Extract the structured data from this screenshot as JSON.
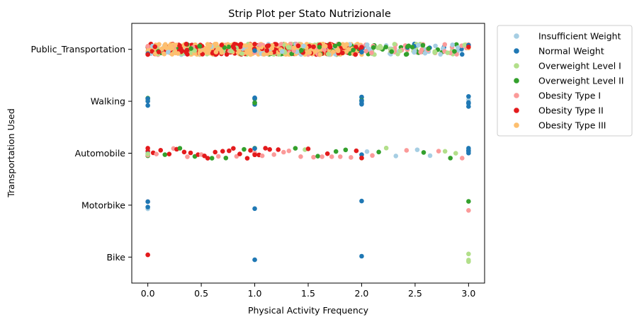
{
  "chart_data": {
    "type": "scatter",
    "subtype": "strip",
    "title": "Strip Plot per Stato Nutrizionale",
    "xlabel": "Physical Activity Frequency",
    "ylabel": "Transportation Used",
    "xlim": [
      -0.15,
      3.15
    ],
    "xticks": [
      "0.0",
      "0.5",
      "1.0",
      "1.5",
      "2.0",
      "2.5",
      "3.0"
    ],
    "categories": [
      "Public_Transportation",
      "Walking",
      "Automobile",
      "Motorbike",
      "Bike"
    ],
    "legend_position": "outside-right",
    "series": [
      {
        "name": "Insufficient Weight",
        "color": "#a6cee3"
      },
      {
        "name": "Normal Weight",
        "color": "#1f78b4"
      },
      {
        "name": "Overweight Level I",
        "color": "#b2df8a"
      },
      {
        "name": "Overweight Level II",
        "color": "#33a02c"
      },
      {
        "name": "Obesity Type I",
        "color": "#fb9a99"
      },
      {
        "name": "Obesity Type II",
        "color": "#e31a1c"
      },
      {
        "name": "Obesity Type III",
        "color": "#fdbf6f"
      }
    ],
    "points": [
      [
        "Motorbike",
        0.0,
        "Insufficient Weight"
      ],
      [
        "Motorbike",
        0.0,
        "Normal Weight"
      ],
      [
        "Motorbike",
        0.0,
        "Obesity Type I"
      ],
      [
        "Motorbike",
        0.0,
        "Normal Weight"
      ],
      [
        "Motorbike",
        1.0,
        "Normal Weight"
      ],
      [
        "Motorbike",
        2.0,
        "Normal Weight"
      ],
      [
        "Motorbike",
        3.0,
        "Overweight Level II"
      ],
      [
        "Motorbike",
        3.0,
        "Obesity Type I"
      ],
      [
        "Bike",
        0.0,
        "Obesity Type II"
      ],
      [
        "Bike",
        1.0,
        "Normal Weight"
      ],
      [
        "Bike",
        2.0,
        "Normal Weight"
      ],
      [
        "Bike",
        3.0,
        "Overweight Level I"
      ],
      [
        "Bike",
        3.0,
        "Overweight Level I"
      ],
      [
        "Bike",
        3.0,
        "Overweight Level I"
      ],
      [
        "Walking",
        0.0,
        "Overweight Level I"
      ],
      [
        "Walking",
        0.0,
        "Normal Weight"
      ],
      [
        "Walking",
        0.0,
        "Normal Weight"
      ],
      [
        "Walking",
        0.0,
        "Insufficient Weight"
      ],
      [
        "Walking",
        0.0,
        "Overweight Level II"
      ],
      [
        "Walking",
        0.0,
        "Normal Weight"
      ],
      [
        "Walking",
        1.0,
        "Normal Weight"
      ],
      [
        "Walking",
        1.0,
        "Overweight Level II"
      ],
      [
        "Walking",
        1.0,
        "Normal Weight"
      ],
      [
        "Walking",
        1.0,
        "Normal Weight"
      ],
      [
        "Walking",
        1.0,
        "Overweight Level II"
      ],
      [
        "Walking",
        1.0,
        "Normal Weight"
      ],
      [
        "Walking",
        2.0,
        "Normal Weight"
      ],
      [
        "Walking",
        2.0,
        "Normal Weight"
      ],
      [
        "Walking",
        2.0,
        "Normal Weight"
      ],
      [
        "Walking",
        2.0,
        "Overweight Level II"
      ],
      [
        "Walking",
        2.0,
        "Normal Weight"
      ],
      [
        "Walking",
        2.0,
        "Normal Weight"
      ],
      [
        "Walking",
        2.0,
        "Normal Weight"
      ],
      [
        "Walking",
        3.0,
        "Normal Weight"
      ],
      [
        "Walking",
        3.0,
        "Normal Weight"
      ],
      [
        "Walking",
        3.0,
        "Insufficient Weight"
      ],
      [
        "Walking",
        3.0,
        "Normal Weight"
      ],
      [
        "Walking",
        3.0,
        "Normal Weight"
      ],
      [
        "Automobile",
        0.0,
        "Obesity Type II"
      ],
      [
        "Automobile",
        0.0,
        "Overweight Level II"
      ],
      [
        "Automobile",
        0.0,
        "Obesity Type I"
      ],
      [
        "Automobile",
        0.0,
        "Normal Weight"
      ],
      [
        "Automobile",
        0.0,
        "Obesity Type II"
      ],
      [
        "Automobile",
        0.0,
        "Overweight Level I"
      ],
      [
        "Automobile",
        0.05,
        "Obesity Type II"
      ],
      [
        "Automobile",
        0.08,
        "Obesity Type I"
      ],
      [
        "Automobile",
        0.12,
        "Obesity Type II"
      ],
      [
        "Automobile",
        0.16,
        "Overweight Level II"
      ],
      [
        "Automobile",
        0.2,
        "Obesity Type II"
      ],
      [
        "Automobile",
        0.24,
        "Obesity Type I"
      ],
      [
        "Automobile",
        0.27,
        "Obesity Type II"
      ],
      [
        "Automobile",
        0.3,
        "Overweight Level II"
      ],
      [
        "Automobile",
        0.34,
        "Obesity Type II"
      ],
      [
        "Automobile",
        0.37,
        "Obesity Type I"
      ],
      [
        "Automobile",
        0.4,
        "Obesity Type II"
      ],
      [
        "Automobile",
        0.44,
        "Overweight Level II"
      ],
      [
        "Automobile",
        0.47,
        "Obesity Type II"
      ],
      [
        "Automobile",
        0.5,
        "Obesity Type I"
      ],
      [
        "Automobile",
        0.53,
        "Obesity Type II"
      ],
      [
        "Automobile",
        0.56,
        "Obesity Type II"
      ],
      [
        "Automobile",
        0.6,
        "Overweight Level II"
      ],
      [
        "Automobile",
        0.63,
        "Obesity Type II"
      ],
      [
        "Automobile",
        0.66,
        "Obesity Type I"
      ],
      [
        "Automobile",
        0.7,
        "Obesity Type II"
      ],
      [
        "Automobile",
        0.73,
        "Overweight Level II"
      ],
      [
        "Automobile",
        0.76,
        "Obesity Type II"
      ],
      [
        "Automobile",
        0.8,
        "Obesity Type II"
      ],
      [
        "Automobile",
        0.83,
        "Obesity Type I"
      ],
      [
        "Automobile",
        0.86,
        "Obesity Type II"
      ],
      [
        "Automobile",
        0.9,
        "Overweight Level II"
      ],
      [
        "Automobile",
        0.93,
        "Obesity Type II"
      ],
      [
        "Automobile",
        0.96,
        "Obesity Type II"
      ],
      [
        "Automobile",
        1.0,
        "Obesity Type II"
      ],
      [
        "Automobile",
        1.0,
        "Obesity Type I"
      ],
      [
        "Automobile",
        1.0,
        "Overweight Level II"
      ],
      [
        "Automobile",
        1.0,
        "Normal Weight"
      ],
      [
        "Automobile",
        1.0,
        "Obesity Type II"
      ],
      [
        "Automobile",
        1.04,
        "Obesity Type II"
      ],
      [
        "Automobile",
        1.07,
        "Obesity Type I"
      ],
      [
        "Automobile",
        1.1,
        "Obesity Type II"
      ],
      [
        "Automobile",
        1.14,
        "Obesity Type II"
      ],
      [
        "Automobile",
        1.18,
        "Obesity Type I"
      ],
      [
        "Automobile",
        1.22,
        "Obesity Type II"
      ],
      [
        "Automobile",
        1.27,
        "Obesity Type I"
      ],
      [
        "Automobile",
        1.32,
        "Obesity Type I"
      ],
      [
        "Automobile",
        1.38,
        "Overweight Level II"
      ],
      [
        "Automobile",
        1.43,
        "Obesity Type I"
      ],
      [
        "Automobile",
        1.47,
        "Overweight Level I"
      ],
      [
        "Automobile",
        1.5,
        "Obesity Type II"
      ],
      [
        "Automobile",
        1.55,
        "Obesity Type I"
      ],
      [
        "Automobile",
        1.59,
        "Overweight Level II"
      ],
      [
        "Automobile",
        1.63,
        "Obesity Type I"
      ],
      [
        "Automobile",
        1.68,
        "Obesity Type II"
      ],
      [
        "Automobile",
        1.72,
        "Obesity Type I"
      ],
      [
        "Automobile",
        1.76,
        "Overweight Level II"
      ],
      [
        "Automobile",
        1.8,
        "Obesity Type I"
      ],
      [
        "Automobile",
        1.85,
        "Overweight Level II"
      ],
      [
        "Automobile",
        1.9,
        "Obesity Type I"
      ],
      [
        "Automobile",
        1.95,
        "Obesity Type II"
      ],
      [
        "Automobile",
        2.0,
        "Obesity Type I"
      ],
      [
        "Automobile",
        2.0,
        "Insufficient Weight"
      ],
      [
        "Automobile",
        2.0,
        "Normal Weight"
      ],
      [
        "Automobile",
        2.0,
        "Overweight Level I"
      ],
      [
        "Automobile",
        2.0,
        "Obesity Type II"
      ],
      [
        "Automobile",
        2.05,
        "Insufficient Weight"
      ],
      [
        "Automobile",
        2.1,
        "Obesity Type I"
      ],
      [
        "Automobile",
        2.16,
        "Overweight Level II"
      ],
      [
        "Automobile",
        2.23,
        "Overweight Level I"
      ],
      [
        "Automobile",
        2.32,
        "Insufficient Weight"
      ],
      [
        "Automobile",
        2.42,
        "Obesity Type I"
      ],
      [
        "Automobile",
        2.52,
        "Insufficient Weight"
      ],
      [
        "Automobile",
        2.58,
        "Overweight Level II"
      ],
      [
        "Automobile",
        2.64,
        "Insufficient Weight"
      ],
      [
        "Automobile",
        2.72,
        "Obesity Type I"
      ],
      [
        "Automobile",
        2.78,
        "Overweight Level I"
      ],
      [
        "Automobile",
        2.83,
        "Overweight Level II"
      ],
      [
        "Automobile",
        2.88,
        "Overweight Level I"
      ],
      [
        "Automobile",
        2.94,
        "Obesity Type I"
      ],
      [
        "Automobile",
        3.0,
        "Normal Weight"
      ],
      [
        "Automobile",
        3.0,
        "Normal Weight"
      ],
      [
        "Automobile",
        3.0,
        "Overweight Level I"
      ],
      [
        "Automobile",
        3.0,
        "Normal Weight"
      ],
      [
        "Automobile",
        3.0,
        "Normal Weight"
      ]
    ],
    "public_transportation_bands": [
      {
        "x_from": 0.0,
        "x_to": 2.0,
        "mix": {
          "Obesity Type III": 6,
          "Obesity Type II": 3,
          "Obesity Type I": 1,
          "Overweight Level I": 1,
          "Overweight Level II": 1,
          "Insufficient Weight": 1
        }
      },
      {
        "x_from": 2.0,
        "x_to": 3.0,
        "mix": {
          "Obesity Type I": 3,
          "Overweight Level I": 2,
          "Overweight Level II": 2,
          "Insufficient Weight": 2,
          "Normal Weight": 1
        }
      }
    ]
  }
}
